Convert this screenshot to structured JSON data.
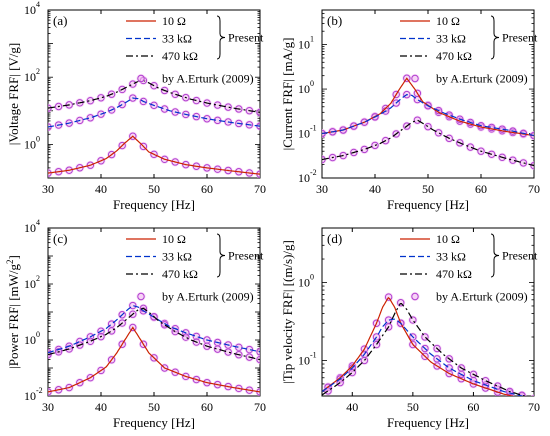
{
  "chart_data": [
    {
      "id": "a",
      "type": "line",
      "panel_label": "(a)",
      "xlabel": "Frequency [Hz]",
      "ylabel": "|Voltage FRF| [V/g]",
      "xlim": [
        30,
        70
      ],
      "xticks": [
        30,
        40,
        50,
        60,
        70
      ],
      "ylog": true,
      "ylim": [
        0.1,
        10000
      ],
      "yticks": [
        {
          "v": 1,
          "label": "10",
          "exp": "0"
        },
        {
          "v": 100,
          "label": "10",
          "exp": "2"
        },
        {
          "v": 10000,
          "label": "10",
          "exp": "4"
        }
      ],
      "legend_placement": "top-right",
      "bracket_label": "Present",
      "series": [
        {
          "name": "10 Ω",
          "role": "present",
          "x": [
            30,
            34,
            38,
            41,
            43,
            44.5,
            46,
            47.5,
            49,
            52,
            56,
            60,
            65,
            70
          ],
          "y": [
            0.14,
            0.17,
            0.24,
            0.38,
            0.65,
            1.1,
            1.75,
            1.05,
            0.6,
            0.36,
            0.25,
            0.2,
            0.16,
            0.13
          ]
        },
        {
          "name": "33 kΩ",
          "role": "present",
          "x": [
            30,
            34,
            38,
            41,
            43,
            45,
            46,
            47,
            48,
            50,
            53,
            56,
            60,
            65,
            70
          ],
          "y": [
            3.3,
            4.3,
            6.2,
            9,
            12.5,
            19,
            24,
            23,
            19,
            14.5,
            10,
            7.8,
            5.8,
            4.4,
            3.5
          ]
        },
        {
          "name": "470 kΩ",
          "role": "present",
          "x": [
            30,
            34,
            38,
            41,
            43,
            45,
            47,
            48,
            49,
            51,
            54,
            57,
            60,
            65,
            70
          ],
          "y": [
            12,
            15,
            20,
            27,
            36,
            52,
            75,
            80,
            68,
            46,
            31,
            22,
            17,
            12,
            9
          ]
        },
        {
          "name": "by A.Erturk (2009)",
          "role": "reference",
          "marker": "circle",
          "x": [
            30,
            32,
            34,
            36,
            38,
            40,
            42,
            44,
            46,
            48,
            50,
            52,
            54,
            56,
            58,
            60,
            62,
            64,
            66,
            68,
            70
          ]
        }
      ]
    },
    {
      "id": "b",
      "type": "line",
      "panel_label": "(b)",
      "xlabel": "Frequency [Hz]",
      "ylabel": "|Current FRF| [mA/g]",
      "xlim": [
        30,
        70
      ],
      "xticks": [
        30,
        40,
        50,
        60,
        70
      ],
      "ylog": true,
      "ylim": [
        0.01,
        60
      ],
      "yticks": [
        {
          "v": 0.01,
          "label": "10",
          "exp": "-2"
        },
        {
          "v": 0.1,
          "label": "10",
          "exp": "-1"
        },
        {
          "v": 1,
          "label": "10",
          "exp": "0"
        },
        {
          "v": 10,
          "label": "10",
          "exp": "1"
        }
      ],
      "legend_placement": "top-right",
      "bracket_label": "Present",
      "series": [
        {
          "name": "10 Ω",
          "role": "present",
          "x": [
            30,
            34,
            38,
            41,
            43,
            44.5,
            46,
            47.5,
            49,
            52,
            56,
            60,
            65,
            70
          ],
          "y": [
            0.1,
            0.12,
            0.18,
            0.28,
            0.48,
            0.95,
            1.75,
            1.0,
            0.52,
            0.3,
            0.19,
            0.14,
            0.11,
            0.09
          ]
        },
        {
          "name": "33 kΩ",
          "role": "present",
          "x": [
            30,
            34,
            38,
            41,
            43,
            45,
            46,
            47,
            48,
            50,
            53,
            56,
            60,
            65,
            70
          ],
          "y": [
            0.1,
            0.12,
            0.18,
            0.27,
            0.38,
            0.62,
            0.75,
            0.72,
            0.58,
            0.42,
            0.29,
            0.21,
            0.15,
            0.12,
            0.09
          ]
        },
        {
          "name": "470 kΩ",
          "role": "present",
          "x": [
            30,
            34,
            38,
            41,
            43,
            45,
            47,
            48,
            49,
            51,
            54,
            57,
            60,
            65,
            70
          ],
          "y": [
            0.026,
            0.032,
            0.044,
            0.06,
            0.08,
            0.12,
            0.18,
            0.2,
            0.17,
            0.12,
            0.078,
            0.055,
            0.04,
            0.027,
            0.019
          ]
        },
        {
          "name": "by A.Erturk (2009)",
          "role": "reference",
          "marker": "circle",
          "x": [
            30,
            32,
            34,
            36,
            38,
            40,
            42,
            44,
            46,
            48,
            50,
            52,
            54,
            56,
            58,
            60,
            62,
            64,
            66,
            68,
            70
          ]
        }
      ]
    },
    {
      "id": "c",
      "type": "line",
      "panel_label": "(c)",
      "xlabel": "Frequency [Hz]",
      "ylabel": "|Power FRF| [mW/g",
      "ylabel_sup": "2",
      "ylabel_end": "]",
      "xlim": [
        30,
        70
      ],
      "xticks": [
        30,
        40,
        50,
        60,
        70
      ],
      "ylog": true,
      "ylim": [
        0.01,
        10000
      ],
      "yticks": [
        {
          "v": 0.01,
          "label": "10",
          "exp": "-2"
        },
        {
          "v": 1,
          "label": "10",
          "exp": "0"
        },
        {
          "v": 100,
          "label": "10",
          "exp": "2"
        },
        {
          "v": 10000,
          "label": "10",
          "exp": "4"
        }
      ],
      "legend_placement": "top-right",
      "bracket_label": "Present",
      "series": [
        {
          "name": "10 Ω",
          "role": "present",
          "x": [
            30,
            34,
            38,
            41,
            43,
            44.5,
            46,
            47.5,
            49,
            52,
            56,
            60,
            65,
            70
          ],
          "y": [
            0.014,
            0.02,
            0.045,
            0.11,
            0.35,
            1.0,
            2.8,
            1.0,
            0.35,
            0.1,
            0.05,
            0.03,
            0.02,
            0.014
          ]
        },
        {
          "name": "33 kΩ",
          "role": "present",
          "x": [
            30,
            34,
            38,
            41,
            43,
            45,
            46,
            47,
            48,
            50,
            53,
            56,
            60,
            65,
            70
          ],
          "y": [
            0.35,
            0.6,
            1.3,
            2.6,
            5.3,
            12,
            17,
            15,
            11,
            6.5,
            3.0,
            1.8,
            1.0,
            0.6,
            0.38
          ]
        },
        {
          "name": "470 kΩ",
          "role": "present",
          "x": [
            30,
            34,
            38,
            41,
            43,
            45,
            47,
            48,
            49,
            51,
            54,
            57,
            60,
            65,
            70
          ],
          "y": [
            0.3,
            0.48,
            0.9,
            1.6,
            2.8,
            5.8,
            12,
            13.5,
            10,
            4.6,
            2.0,
            1.0,
            0.6,
            0.33,
            0.2
          ]
        },
        {
          "name": "by A.Erturk (2009)",
          "role": "reference",
          "marker": "circle",
          "x": [
            30,
            32,
            34,
            36,
            38,
            40,
            42,
            44,
            46,
            48,
            50,
            52,
            54,
            56,
            58,
            60,
            62,
            64,
            66,
            68,
            70
          ]
        }
      ]
    },
    {
      "id": "d",
      "type": "line",
      "panel_label": "(d)",
      "xlabel": "Frequency [Hz]",
      "ylabel": "|Tip velocity FRF| [(m/s)/g]",
      "xlim": [
        35,
        70
      ],
      "xticks": [
        40,
        50,
        60,
        70
      ],
      "ylog": true,
      "ylim": [
        0.035,
        5
      ],
      "yticks": [
        {
          "v": 0.1,
          "label": "10",
          "exp": "-1"
        },
        {
          "v": 1,
          "label": "10",
          "exp": "0"
        }
      ],
      "legend_placement": "top-right",
      "bracket_label": "Present",
      "series": [
        {
          "name": "10 Ω",
          "role": "present",
          "x": [
            35,
            38,
            40,
            42,
            44,
            45,
            46,
            47,
            48,
            50,
            53,
            56,
            60,
            65,
            70
          ],
          "y": [
            0.04,
            0.06,
            0.085,
            0.14,
            0.3,
            0.48,
            0.65,
            0.48,
            0.3,
            0.16,
            0.095,
            0.068,
            0.05,
            0.037,
            0.03
          ]
        },
        {
          "name": "33 kΩ",
          "role": "present",
          "x": [
            35,
            38,
            40,
            42,
            44,
            45,
            46,
            47,
            48,
            50,
            53,
            56,
            60,
            65,
            70
          ],
          "y": [
            0.04,
            0.058,
            0.08,
            0.12,
            0.2,
            0.27,
            0.33,
            0.34,
            0.3,
            0.2,
            0.12,
            0.08,
            0.055,
            0.04,
            0.032
          ]
        },
        {
          "name": "470 kΩ",
          "role": "present",
          "x": [
            35,
            38,
            40,
            42,
            44,
            46,
            47,
            48,
            49,
            50,
            52,
            55,
            58,
            62,
            66,
            70
          ],
          "y": [
            0.036,
            0.052,
            0.07,
            0.1,
            0.16,
            0.27,
            0.4,
            0.55,
            0.45,
            0.33,
            0.2,
            0.12,
            0.08,
            0.055,
            0.04,
            0.032
          ]
        },
        {
          "name": "by A.Erturk (2009)",
          "role": "reference",
          "marker": "circle",
          "x": [
            36,
            38,
            40,
            42,
            44,
            46,
            48,
            50,
            52,
            54,
            56,
            58,
            60,
            62,
            64,
            66,
            68,
            70
          ]
        }
      ]
    }
  ],
  "colors": {
    "10 Ω": "#cc2200",
    "33 kΩ": "#0033cc",
    "470 kΩ": "#000000",
    "reference": "#b040d0",
    "reference_halo": "#f2b6f0"
  }
}
